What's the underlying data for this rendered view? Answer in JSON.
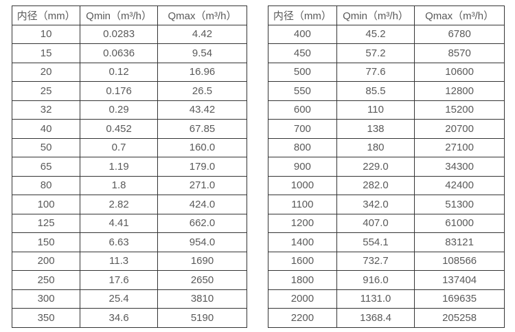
{
  "page": {
    "description_label": "flow meter diameter vs flow range specification tables"
  },
  "colors": {
    "background": "#ffffff",
    "border": "#333333",
    "text": "#595959"
  },
  "tables": [
    {
      "name": "small-diameters",
      "headers": [
        "内径（mm）",
        "Qmin（m³/h）",
        "Qmax（m³/h）"
      ],
      "rows": [
        [
          "10",
          "0.0283",
          "4.42"
        ],
        [
          "15",
          "0.0636",
          "9.54"
        ],
        [
          "20",
          "0.12",
          "16.96"
        ],
        [
          "25",
          "0.176",
          "26.5"
        ],
        [
          "32",
          "0.29",
          "43.42"
        ],
        [
          "40",
          "0.452",
          "67.85"
        ],
        [
          "50",
          "0.7",
          "160.0"
        ],
        [
          "65",
          "1.19",
          "179.0"
        ],
        [
          "80",
          "1.8",
          "271.0"
        ],
        [
          "100",
          "2.82",
          "424.0"
        ],
        [
          "125",
          "4.41",
          "662.0"
        ],
        [
          "150",
          "6.63",
          "954.0"
        ],
        [
          "200",
          "11.3",
          "1690"
        ],
        [
          "250",
          "17.6",
          "2650"
        ],
        [
          "300",
          "25.4",
          "3810"
        ],
        [
          "350",
          "34.6",
          "5190"
        ]
      ]
    },
    {
      "name": "large-diameters",
      "headers": [
        "内径（mm）",
        "Qmin（m³/h）",
        "Qmax（m³/h）"
      ],
      "rows": [
        [
          "400",
          "45.2",
          "6780"
        ],
        [
          "450",
          "57.2",
          "8570"
        ],
        [
          "500",
          "77.6",
          "10600"
        ],
        [
          "550",
          "85.5",
          "12800"
        ],
        [
          "600",
          "110",
          "15200"
        ],
        [
          "700",
          "138",
          "20700"
        ],
        [
          "800",
          "180",
          "27100"
        ],
        [
          "900",
          "229.0",
          "34300"
        ],
        [
          "1000",
          "282.0",
          "42400"
        ],
        [
          "1100",
          "342.0",
          "51300"
        ],
        [
          "1200",
          "407.0",
          "61000"
        ],
        [
          "1400",
          "554.1",
          "83121"
        ],
        [
          "1600",
          "732.7",
          "108566"
        ],
        [
          "1800",
          "916.0",
          "137404"
        ],
        [
          "2000",
          "1131.0",
          "169635"
        ],
        [
          "2200",
          "1368.4",
          "205258"
        ]
      ]
    }
  ]
}
